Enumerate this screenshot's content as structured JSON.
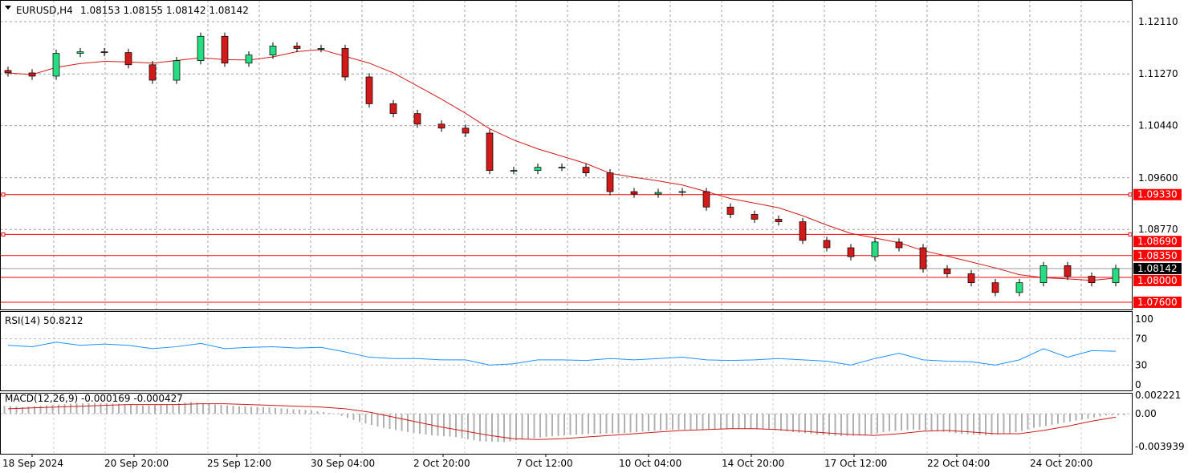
{
  "header": {
    "symbol_label": "EURUSD,H4",
    "ohlc": "1.08153 1.08155 1.08142 1.08142"
  },
  "colors": {
    "bull": "#26de81",
    "bear": "#d11a1a",
    "ma": "#d11a1a",
    "level": "#ff0000",
    "rsi": "#1e90ff",
    "macd_hist": "#b0b0b0",
    "macd_signal": "#d11a1a",
    "grid": "#a0a0a0"
  },
  "chart_data": [
    {
      "type": "candlestick",
      "title": "EURUSD,H4",
      "ylim": [
        1.076,
        1.1211
      ],
      "yticks": [
        "1.12110",
        "1.11270",
        "1.10440",
        "1.09600",
        "1.08770"
      ],
      "xticks": [
        "18 Sep 2024",
        "20 Sep 20:00",
        "25 Sep 12:00",
        "30 Sep 04:00",
        "2 Oct 20:00",
        "7 Oct 12:00",
        "10 Oct 04:00",
        "14 Oct 20:00",
        "17 Oct 12:00",
        "22 Oct 04:00",
        "24 Oct 20:00"
      ],
      "closes": [
        1.11286,
        1.11234,
        1.116,
        1.11626,
        1.11613,
        1.11417,
        1.11169,
        1.11483,
        1.11875,
        1.11443,
        1.11574,
        1.11718,
        1.11679,
        1.11679,
        1.11221,
        1.1079,
        1.10633,
        1.10463,
        1.10398,
        1.10319,
        1.09718,
        1.09718,
        1.0977,
        1.0977,
        1.09679,
        1.09378,
        1.09339,
        1.09365,
        1.09378,
        1.0913,
        1.09012,
        1.08934,
        1.08894,
        1.08594,
        1.08476,
        1.08332,
        1.08568,
        1.08476,
        1.08136,
        1.08058,
        1.07914,
        1.07757,
        1.07914,
        1.08188,
        1.08018,
        1.07914,
        1.08142
      ],
      "levels": [
        {
          "label": "1.09330",
          "value": 1.0933,
          "marker": true
        },
        {
          "label": "1.08690",
          "value": 1.0869,
          "marker": true
        },
        {
          "label": "1.08350",
          "value": 1.0835,
          "marker": false
        },
        {
          "label": "1.08000",
          "value": 1.08,
          "marker": false
        },
        {
          "label": "1.07600",
          "value": 1.076,
          "marker": false
        }
      ],
      "current_price": {
        "label": "1.08142",
        "value": 1.08142
      }
    },
    {
      "type": "line",
      "title": "RSI(14) 50.8212",
      "ylim": [
        0,
        100
      ],
      "yticks": [
        "100",
        "70",
        "30",
        "0"
      ],
      "values": [
        60,
        58,
        65,
        60,
        62,
        60,
        55,
        58,
        63,
        55,
        57,
        58,
        56,
        57,
        50,
        42,
        40,
        40,
        38,
        38,
        30,
        32,
        38,
        38,
        37,
        40,
        38,
        40,
        42,
        38,
        37,
        38,
        40,
        38,
        36,
        30,
        40,
        48,
        38,
        36,
        35,
        30,
        38,
        55,
        42,
        52,
        51
      ]
    },
    {
      "type": "bar",
      "title": "MACD(12,26,9) -0.000169 -0.000427",
      "ylim": [
        -0.003939,
        0.002221
      ],
      "yticks": [
        "0.002221",
        "0.00",
        "-0.003939"
      ],
      "histogram": [
        0.001,
        0.0008,
        0.001,
        0.0012,
        0.0013,
        0.0012,
        0.001,
        0.0011,
        0.0014,
        0.0011,
        0.0009,
        0.0008,
        0.0006,
        0.0004,
        0.0,
        -0.001,
        -0.0017,
        -0.0022,
        -0.0026,
        -0.0028,
        -0.0033,
        -0.0034,
        -0.003,
        -0.0027,
        -0.0025,
        -0.0024,
        -0.0023,
        -0.0021,
        -0.0019,
        -0.0019,
        -0.0018,
        -0.0018,
        -0.0019,
        -0.0022,
        -0.0025,
        -0.0027,
        -0.0026,
        -0.0021,
        -0.0019,
        -0.0021,
        -0.0024,
        -0.0026,
        -0.0024,
        -0.0017,
        -0.0012,
        -0.0007,
        -0.0002
      ],
      "signal": [
        0.0006,
        0.0007,
        0.0008,
        0.0009,
        0.001,
        0.0011,
        0.0011,
        0.0011,
        0.0012,
        0.0012,
        0.0011,
        0.001,
        0.0009,
        0.0008,
        0.0006,
        0.0002,
        -0.0004,
        -0.001,
        -0.0016,
        -0.0021,
        -0.0026,
        -0.003,
        -0.0031,
        -0.003,
        -0.0028,
        -0.0026,
        -0.0024,
        -0.0022,
        -0.002,
        -0.0019,
        -0.0018,
        -0.0018,
        -0.0019,
        -0.0021,
        -0.0023,
        -0.0025,
        -0.0026,
        -0.0024,
        -0.0021,
        -0.002,
        -0.0022,
        -0.0024,
        -0.0024,
        -0.002,
        -0.0015,
        -0.0009,
        -0.0004
      ]
    }
  ]
}
